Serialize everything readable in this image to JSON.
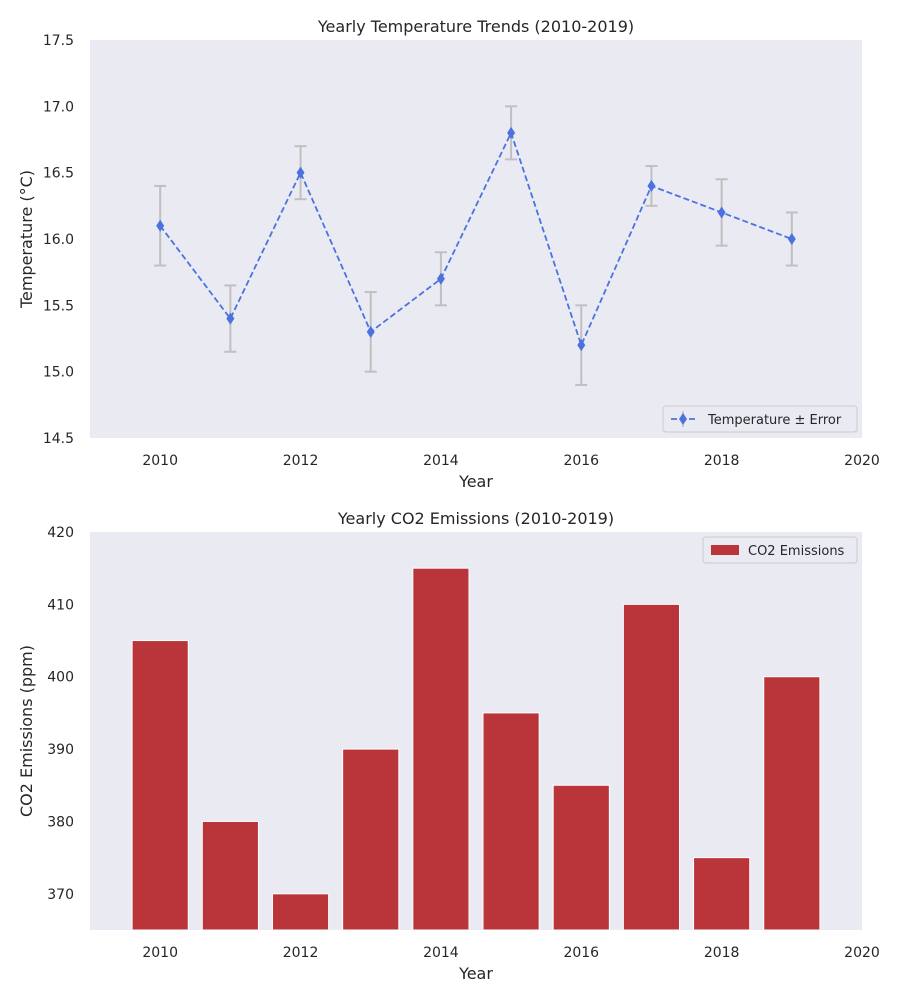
{
  "chart_data": [
    {
      "type": "line",
      "title": "Yearly Temperature Trends (2010-2019)",
      "xlabel": "Year",
      "ylabel": "Temperature (°C)",
      "xlim": [
        2009,
        2020
      ],
      "ylim": [
        14.5,
        17.5
      ],
      "x_ticks": [
        "2010",
        "2012",
        "2014",
        "2016",
        "2018",
        "2020"
      ],
      "y_ticks": [
        "14.5",
        "15.0",
        "15.5",
        "16.0",
        "16.5",
        "17.0",
        "17.5"
      ],
      "grid": false,
      "legend_position": "lower-right",
      "series": [
        {
          "name": "Temperature ± Error",
          "x": [
            2010,
            2011,
            2012,
            2013,
            2014,
            2015,
            2016,
            2017,
            2018,
            2019
          ],
          "values": [
            16.1,
            15.4,
            16.5,
            15.3,
            15.7,
            16.8,
            15.2,
            16.4,
            16.2,
            16.0
          ],
          "errors": [
            0.3,
            0.25,
            0.2,
            0.3,
            0.2,
            0.2,
            0.3,
            0.15,
            0.25,
            0.2
          ],
          "color": "#4c72e0",
          "error_color": "#c0c0c0",
          "line_style": "dashed",
          "marker": "diamond"
        }
      ]
    },
    {
      "type": "bar",
      "title": "Yearly CO2 Emissions (2010-2019)",
      "xlabel": "Year",
      "ylabel": "CO2 Emissions (ppm)",
      "xlim": [
        2009,
        2020
      ],
      "ylim": [
        365,
        420
      ],
      "x_ticks": [
        "2010",
        "2012",
        "2014",
        "2016",
        "2018",
        "2020"
      ],
      "y_ticks": [
        "370",
        "380",
        "390",
        "400",
        "410",
        "420"
      ],
      "grid": false,
      "legend_position": "upper-right",
      "series": [
        {
          "name": "CO2 Emissions",
          "x": [
            2010,
            2011,
            2012,
            2013,
            2014,
            2015,
            2016,
            2017,
            2018,
            2019
          ],
          "values": [
            405,
            380,
            370,
            390,
            415,
            395,
            385,
            410,
            375,
            400
          ],
          "color": "#b93539"
        }
      ]
    }
  ],
  "colors": {
    "plot_background": "#eaeaf2",
    "text": "#262626"
  }
}
